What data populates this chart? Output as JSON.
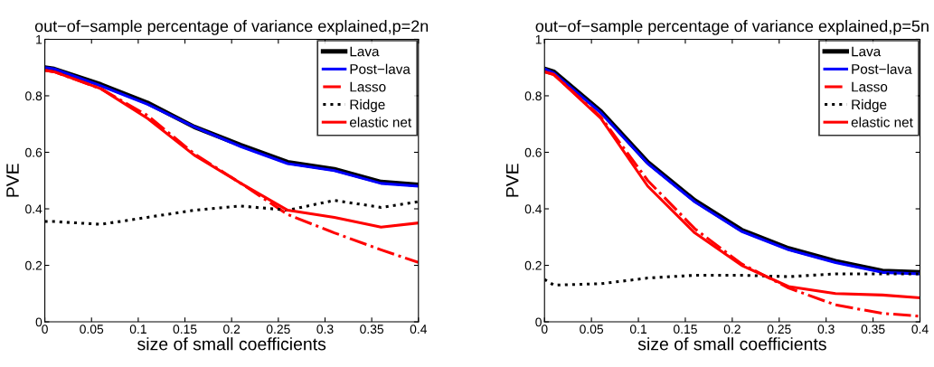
{
  "chart_data": [
    {
      "type": "line",
      "title": "out−of−sample percentage of variance explained,p=2n",
      "xlabel": "size of small coefficients",
      "ylabel": "PVE",
      "x": [
        0,
        0.01,
        0.06,
        0.11,
        0.16,
        0.21,
        0.26,
        0.31,
        0.36,
        0.4
      ],
      "xlim": [
        0,
        0.4
      ],
      "xticks": [
        0,
        0.05,
        0.1,
        0.15,
        0.2,
        0.25,
        0.3,
        0.35,
        0.4
      ],
      "ylim": [
        0,
        1
      ],
      "yticks": [
        0,
        0.2,
        0.4,
        0.6,
        0.8,
        1
      ],
      "grid": false,
      "legend": "top right",
      "marker": "none",
      "series": [
        {
          "name": "Lava",
          "color": "#000000",
          "line_style": "solid",
          "values": [
            0.9,
            0.895,
            0.84,
            0.775,
            0.69,
            0.625,
            0.565,
            0.54,
            0.495,
            0.485
          ]
        },
        {
          "name": "Post−lava",
          "color": "#0000ff",
          "line_style": "solid",
          "values": [
            0.9,
            0.895,
            0.835,
            0.77,
            0.69,
            0.62,
            0.56,
            0.535,
            0.49,
            0.48
          ]
        },
        {
          "name": "Lasso",
          "color": "#ff0000",
          "line_style": "dashdot",
          "values": [
            0.89,
            0.885,
            0.825,
            0.73,
            0.595,
            0.49,
            0.38,
            0.315,
            0.255,
            0.21
          ]
        },
        {
          "name": "Ridge",
          "color": "#000000",
          "line_style": "dotted",
          "values": [
            0.355,
            0.355,
            0.345,
            0.37,
            0.395,
            0.41,
            0.395,
            0.43,
            0.405,
            0.425
          ]
        },
        {
          "name": "elastic net",
          "color": "#ff0000",
          "line_style": "solid",
          "values": [
            0.89,
            0.885,
            0.825,
            0.72,
            0.59,
            0.49,
            0.395,
            0.37,
            0.335,
            0.35
          ]
        }
      ]
    },
    {
      "type": "line",
      "title": "out−of−sample percentage of variance explained,p=5n",
      "xlabel": "size of small coefficients",
      "ylabel": "PVE",
      "x": [
        0,
        0.01,
        0.06,
        0.11,
        0.16,
        0.21,
        0.26,
        0.31,
        0.36,
        0.4
      ],
      "xlim": [
        0,
        0.4
      ],
      "xticks": [
        0,
        0.05,
        0.1,
        0.15,
        0.2,
        0.25,
        0.3,
        0.35,
        0.4
      ],
      "ylim": [
        0,
        1
      ],
      "yticks": [
        0,
        0.2,
        0.4,
        0.6,
        0.8,
        1
      ],
      "grid": false,
      "legend": "top right",
      "marker": "none",
      "series": [
        {
          "name": "Lava",
          "color": "#000000",
          "line_style": "solid",
          "values": [
            0.895,
            0.885,
            0.745,
            0.565,
            0.43,
            0.325,
            0.26,
            0.215,
            0.18,
            0.175
          ]
        },
        {
          "name": "Post−lava",
          "color": "#0000ff",
          "line_style": "solid",
          "values": [
            0.895,
            0.88,
            0.74,
            0.56,
            0.425,
            0.32,
            0.255,
            0.21,
            0.175,
            0.17
          ]
        },
        {
          "name": "Lasso",
          "color": "#ff0000",
          "line_style": "dashdot",
          "values": [
            0.885,
            0.875,
            0.725,
            0.5,
            0.33,
            0.205,
            0.12,
            0.06,
            0.03,
            0.02
          ]
        },
        {
          "name": "Ridge",
          "color": "#000000",
          "line_style": "dotted",
          "values": [
            0.15,
            0.13,
            0.135,
            0.155,
            0.165,
            0.165,
            0.16,
            0.17,
            0.17,
            0.17
          ]
        },
        {
          "name": "elastic net",
          "color": "#ff0000",
          "line_style": "solid",
          "values": [
            0.885,
            0.875,
            0.72,
            0.48,
            0.315,
            0.2,
            0.125,
            0.1,
            0.095,
            0.085
          ]
        }
      ]
    }
  ]
}
